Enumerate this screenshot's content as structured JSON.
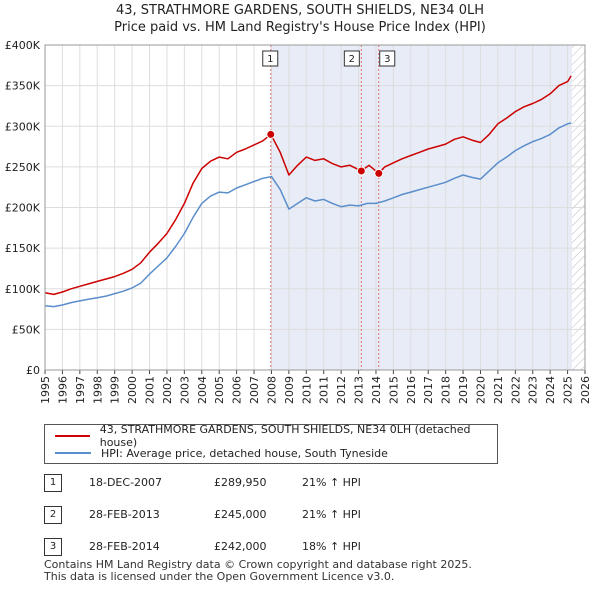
{
  "title_line1": "43, STRATHMORE GARDENS, SOUTH SHIELDS, NE34 0LH",
  "title_line2": "Price paid vs. HM Land Registry's House Price Index (HPI)",
  "colors": {
    "property": "#cc0000",
    "hpi": "#5b8ecb",
    "shade": "#e8ecf7",
    "grid": "#dddddd",
    "vline": "#e07070"
  },
  "chart_data": {
    "type": "line",
    "title": "43, STRATHMORE GARDENS, SOUTH SHIELDS, NE34 0LH",
    "subtitle": "Price paid vs. HM Land Registry's House Price Index (HPI)",
    "xlabel": "",
    "ylabel": "",
    "xlim": [
      1995,
      2026
    ],
    "ylim": [
      0,
      400000
    ],
    "grid": true,
    "y_ticks": [
      0,
      50000,
      100000,
      150000,
      200000,
      250000,
      300000,
      350000,
      400000
    ],
    "y_tick_labels": [
      "£0",
      "£50K",
      "£100K",
      "£150K",
      "£200K",
      "£250K",
      "£300K",
      "£350K",
      "£400K"
    ],
    "x_ticks": [
      1995,
      1996,
      1997,
      1998,
      1999,
      2000,
      2001,
      2002,
      2003,
      2004,
      2005,
      2006,
      2007,
      2008,
      2009,
      2010,
      2011,
      2012,
      2013,
      2014,
      2015,
      2016,
      2017,
      2018,
      2019,
      2020,
      2021,
      2022,
      2023,
      2024,
      2025,
      2026
    ],
    "x_tick_labels": [
      "1995",
      "1996",
      "1997",
      "1998",
      "1999",
      "2000",
      "2001",
      "2002",
      "2003",
      "2004",
      "2005",
      "2006",
      "2007",
      "2008",
      "2009",
      "2010",
      "2011",
      "2012",
      "2013",
      "2014",
      "2015",
      "2016",
      "2017",
      "2018",
      "2019",
      "2020",
      "2021",
      "2022",
      "2023",
      "2024",
      "2025",
      "2026"
    ],
    "shaded_region": [
      2007.96,
      2025.25
    ],
    "hatched_region": [
      2025.25,
      2026
    ],
    "series": [
      {
        "name": "43, STRATHMORE GARDENS, SOUTH SHIELDS, NE34 0LH (detached house)",
        "x": [
          1995,
          1995.5,
          1996,
          1996.5,
          1997,
          1997.5,
          1998,
          1998.5,
          1999,
          1999.5,
          2000,
          2000.5,
          2001,
          2001.5,
          2002,
          2002.5,
          2003,
          2003.5,
          2004,
          2004.5,
          2005,
          2005.5,
          2006,
          2006.5,
          2007,
          2007.5,
          2007.96,
          2008.5,
          2009,
          2009.5,
          2010,
          2010.5,
          2011,
          2011.5,
          2012,
          2012.5,
          2013.16,
          2013.6,
          2014.16,
          2014.5,
          2015,
          2015.5,
          2016,
          2016.5,
          2017,
          2017.5,
          2018,
          2018.5,
          2019,
          2019.5,
          2020,
          2020.5,
          2021,
          2021.5,
          2022,
          2022.5,
          2023,
          2023.5,
          2024,
          2024.5,
          2025,
          2025.2
        ],
        "values": [
          95000,
          93000,
          96000,
          100000,
          103000,
          106000,
          109000,
          112000,
          115000,
          119000,
          124000,
          132000,
          145000,
          156000,
          168000,
          185000,
          205000,
          230000,
          248000,
          257000,
          262000,
          260000,
          268000,
          272000,
          277000,
          282000,
          289950,
          268000,
          240000,
          252000,
          262000,
          258000,
          260000,
          254000,
          250000,
          252000,
          245000,
          252000,
          242000,
          250000,
          255000,
          260000,
          264000,
          268000,
          272000,
          275000,
          278000,
          284000,
          287000,
          283000,
          280000,
          290000,
          303000,
          310000,
          318000,
          324000,
          328000,
          333000,
          340000,
          350000,
          355000,
          362000
        ]
      },
      {
        "name": "HPI: Average price, detached house, South Tyneside",
        "x": [
          1995,
          1995.5,
          1996,
          1996.5,
          1997,
          1997.5,
          1998,
          1998.5,
          1999,
          1999.5,
          2000,
          2000.5,
          2001,
          2001.5,
          2002,
          2002.5,
          2003,
          2003.5,
          2004,
          2004.5,
          2005,
          2005.5,
          2006,
          2006.5,
          2007,
          2007.5,
          2008,
          2008.5,
          2009,
          2009.5,
          2010,
          2010.5,
          2011,
          2011.5,
          2012,
          2012.5,
          2013,
          2013.5,
          2014,
          2014.5,
          2015,
          2015.5,
          2016,
          2016.5,
          2017,
          2017.5,
          2018,
          2018.5,
          2019,
          2019.5,
          2020,
          2020.5,
          2021,
          2021.5,
          2022,
          2022.5,
          2023,
          2023.5,
          2024,
          2024.5,
          2025,
          2025.2
        ],
        "values": [
          79000,
          78000,
          80000,
          83000,
          85000,
          87000,
          89000,
          91000,
          94000,
          97000,
          101000,
          107000,
          118000,
          128000,
          138000,
          152000,
          168000,
          188000,
          205000,
          214000,
          219000,
          218000,
          224000,
          228000,
          232000,
          236000,
          238000,
          222000,
          198000,
          205000,
          212000,
          208000,
          210000,
          205000,
          201000,
          203000,
          202000,
          205000,
          205000,
          208000,
          212000,
          216000,
          219000,
          222000,
          225000,
          228000,
          231000,
          236000,
          240000,
          237000,
          235000,
          245000,
          255000,
          262000,
          270000,
          276000,
          281000,
          285000,
          290000,
          298000,
          303000,
          304000
        ]
      }
    ],
    "annotations": [
      {
        "label": "1",
        "x": 2007.96,
        "y": 289950
      },
      {
        "label": "2",
        "x": 2013.16,
        "y": 245000
      },
      {
        "label": "3",
        "x": 2014.16,
        "y": 242000
      }
    ]
  },
  "legend": {
    "items": [
      "43, STRATHMORE GARDENS, SOUTH SHIELDS, NE34 0LH (detached house)",
      "HPI: Average price, detached house, South Tyneside"
    ]
  },
  "sales": [
    {
      "num": "1",
      "date": "18-DEC-2007",
      "price": "£289,950",
      "hpi": "21% ↑ HPI"
    },
    {
      "num": "2",
      "date": "28-FEB-2013",
      "price": "£245,000",
      "hpi": "21% ↑ HPI"
    },
    {
      "num": "3",
      "date": "28-FEB-2014",
      "price": "£242,000",
      "hpi": "18% ↑ HPI"
    }
  ],
  "footer": {
    "line1": "Contains HM Land Registry data © Crown copyright and database right 2025.",
    "line2": "This data is licensed under the Open Government Licence v3.0."
  }
}
